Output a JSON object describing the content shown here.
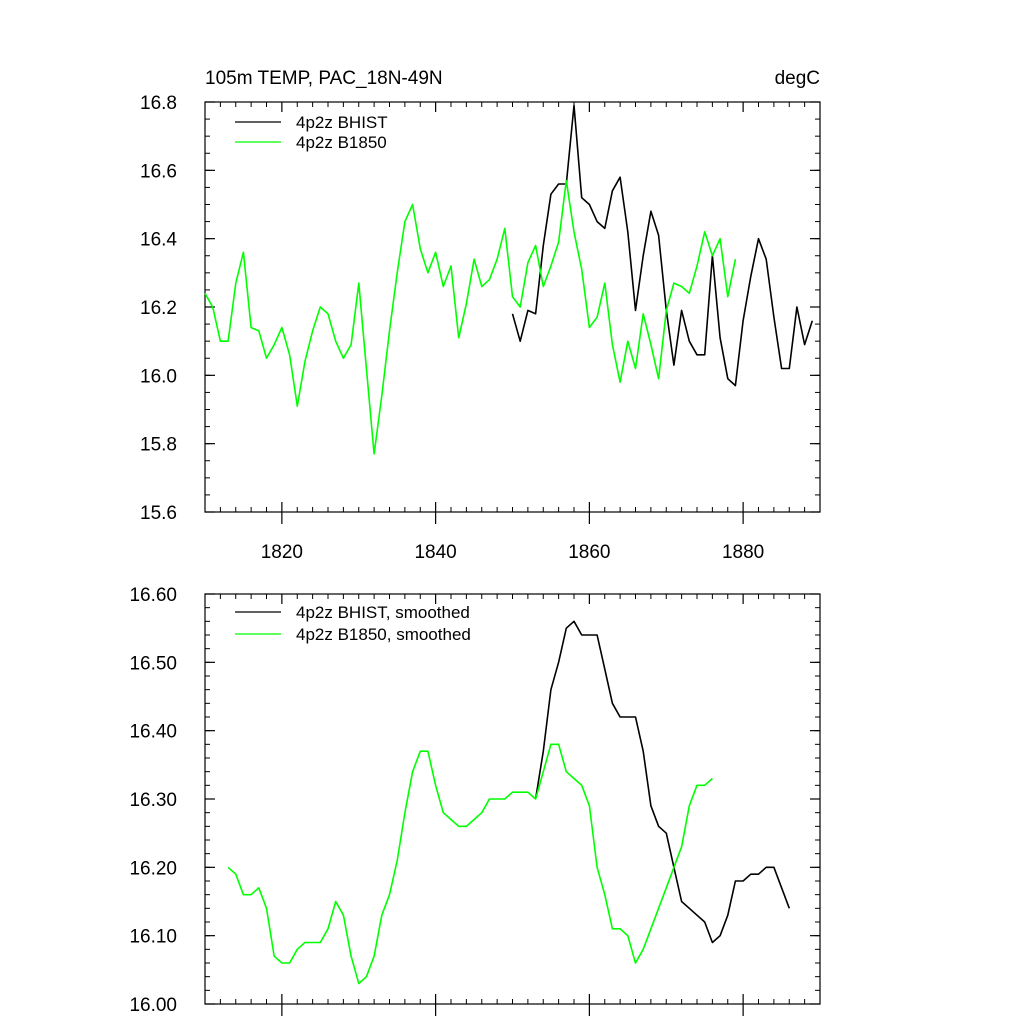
{
  "chart_data": [
    {
      "type": "line",
      "title_left": "105m TEMP, PAC_18N-49N",
      "title_right": "degC",
      "xlim": [
        1810,
        1890
      ],
      "ylim": [
        15.6,
        16.8
      ],
      "xticks": [
        {
          "value": 1820,
          "label": "1820"
        },
        {
          "value": 1840,
          "label": "1840"
        },
        {
          "value": 1860,
          "label": "1860"
        },
        {
          "value": 1880,
          "label": "1880"
        }
      ],
      "yticks": [
        {
          "value": 15.6,
          "label": "15.6"
        },
        {
          "value": 15.8,
          "label": "15.8"
        },
        {
          "value": 16.0,
          "label": "16.0"
        },
        {
          "value": 16.2,
          "label": "16.2"
        },
        {
          "value": 16.4,
          "label": "16.4"
        },
        {
          "value": 16.6,
          "label": "16.6"
        },
        {
          "value": 16.8,
          "label": "16.8"
        }
      ],
      "legend_position": "top-left",
      "series": [
        {
          "name": "4p2z BHIST",
          "color": "#000000",
          "x": [
            1850,
            1851,
            1852,
            1853,
            1854,
            1855,
            1856,
            1857,
            1858,
            1859,
            1860,
            1861,
            1862,
            1863,
            1864,
            1865,
            1866,
            1867,
            1868,
            1869,
            1870,
            1871,
            1872,
            1873,
            1874,
            1875,
            1876,
            1877,
            1878,
            1879,
            1880,
            1881,
            1882,
            1883,
            1884,
            1885,
            1886,
            1887,
            1888,
            1889
          ],
          "y": [
            16.18,
            16.1,
            16.19,
            16.18,
            16.38,
            16.53,
            16.56,
            16.56,
            16.79,
            16.52,
            16.5,
            16.45,
            16.43,
            16.54,
            16.58,
            16.42,
            16.19,
            16.35,
            16.48,
            16.41,
            16.19,
            16.03,
            16.19,
            16.1,
            16.06,
            16.06,
            16.35,
            16.11,
            15.99,
            15.97,
            16.16,
            16.29,
            16.4,
            16.34,
            16.17,
            16.02,
            16.02,
            16.2,
            16.09,
            16.16
          ]
        },
        {
          "name": "4p2z B1850",
          "color": "#00ff00",
          "x": [
            1810,
            1811,
            1812,
            1813,
            1814,
            1815,
            1816,
            1817,
            1818,
            1819,
            1820,
            1821,
            1822,
            1823,
            1824,
            1825,
            1826,
            1827,
            1828,
            1829,
            1830,
            1831,
            1832,
            1833,
            1834,
            1835,
            1836,
            1837,
            1838,
            1839,
            1840,
            1841,
            1842,
            1843,
            1844,
            1845,
            1846,
            1847,
            1848,
            1849,
            1850,
            1851,
            1852,
            1853,
            1854,
            1855,
            1856,
            1857,
            1858,
            1859,
            1860,
            1861,
            1862,
            1863,
            1864,
            1865,
            1866,
            1867,
            1868,
            1869,
            1870,
            1871,
            1872,
            1873,
            1874,
            1875,
            1876,
            1877,
            1878,
            1879
          ],
          "y": [
            16.24,
            16.2,
            16.1,
            16.1,
            16.27,
            16.36,
            16.14,
            16.13,
            16.05,
            16.09,
            16.14,
            16.06,
            15.91,
            16.04,
            16.13,
            16.2,
            16.18,
            16.1,
            16.05,
            16.09,
            16.27,
            16.02,
            15.77,
            15.94,
            16.13,
            16.3,
            16.45,
            16.5,
            16.37,
            16.3,
            16.36,
            16.26,
            16.32,
            16.11,
            16.21,
            16.34,
            16.26,
            16.28,
            16.34,
            16.43,
            16.23,
            16.2,
            16.33,
            16.38,
            16.26,
            16.32,
            16.39,
            16.57,
            16.42,
            16.31,
            16.14,
            16.17,
            16.27,
            16.09,
            15.98,
            16.1,
            16.02,
            16.18,
            16.09,
            15.99,
            16.19,
            16.27,
            16.26,
            16.24,
            16.32,
            16.42,
            16.35,
            16.4,
            16.23,
            16.34
          ]
        }
      ]
    },
    {
      "type": "line",
      "xlim": [
        1810,
        1890
      ],
      "ylim": [
        16.0,
        16.6
      ],
      "xticks": [
        {
          "value": 1820,
          "label": ""
        },
        {
          "value": 1840,
          "label": ""
        },
        {
          "value": 1860,
          "label": ""
        },
        {
          "value": 1880,
          "label": ""
        }
      ],
      "yticks": [
        {
          "value": 16.0,
          "label": "16.00"
        },
        {
          "value": 16.1,
          "label": "16.10"
        },
        {
          "value": 16.2,
          "label": "16.20"
        },
        {
          "value": 16.3,
          "label": "16.30"
        },
        {
          "value": 16.4,
          "label": "16.40"
        },
        {
          "value": 16.5,
          "label": "16.50"
        },
        {
          "value": 16.6,
          "label": "16.60"
        }
      ],
      "legend_position": "top-left",
      "series": [
        {
          "name": "4p2z BHIST, smoothed",
          "color": "#000000",
          "x": [
            1853,
            1854,
            1855,
            1856,
            1857,
            1858,
            1859,
            1860,
            1861,
            1862,
            1863,
            1864,
            1865,
            1866,
            1867,
            1868,
            1869,
            1870,
            1871,
            1872,
            1873,
            1874,
            1875,
            1876,
            1877,
            1878,
            1879,
            1880,
            1881,
            1882,
            1883,
            1884,
            1885,
            1886
          ],
          "y": [
            16.3,
            16.37,
            16.46,
            16.5,
            16.55,
            16.56,
            16.54,
            16.54,
            16.54,
            16.49,
            16.44,
            16.42,
            16.42,
            16.42,
            16.37,
            16.29,
            16.26,
            16.25,
            16.2,
            16.15,
            16.14,
            16.13,
            16.12,
            16.09,
            16.1,
            16.13,
            16.18,
            16.18,
            16.19,
            16.19,
            16.2,
            16.2,
            16.17,
            16.14
          ]
        },
        {
          "name": "4p2z B1850, smoothed",
          "color": "#00ff00",
          "x": [
            1813,
            1814,
            1815,
            1816,
            1817,
            1818,
            1819,
            1820,
            1821,
            1822,
            1823,
            1824,
            1825,
            1826,
            1827,
            1828,
            1829,
            1830,
            1831,
            1832,
            1833,
            1834,
            1835,
            1836,
            1837,
            1838,
            1839,
            1840,
            1841,
            1842,
            1843,
            1844,
            1845,
            1846,
            1847,
            1848,
            1849,
            1850,
            1851,
            1852,
            1853,
            1854,
            1855,
            1856,
            1857,
            1858,
            1859,
            1860,
            1861,
            1862,
            1863,
            1864,
            1865,
            1866,
            1867,
            1868,
            1869,
            1870,
            1871,
            1872,
            1873,
            1874,
            1875,
            1876
          ],
          "y": [
            16.2,
            16.19,
            16.16,
            16.16,
            16.17,
            16.14,
            16.07,
            16.06,
            16.06,
            16.08,
            16.09,
            16.09,
            16.09,
            16.11,
            16.15,
            16.13,
            16.07,
            16.03,
            16.04,
            16.07,
            16.13,
            16.16,
            16.21,
            16.28,
            16.34,
            16.37,
            16.37,
            16.32,
            16.28,
            16.27,
            16.26,
            16.26,
            16.27,
            16.28,
            16.3,
            16.3,
            16.3,
            16.31,
            16.31,
            16.31,
            16.3,
            16.34,
            16.38,
            16.38,
            16.34,
            16.33,
            16.32,
            16.29,
            16.2,
            16.16,
            16.11,
            16.11,
            16.1,
            16.06,
            16.08,
            16.11,
            16.14,
            16.17,
            16.2,
            16.23,
            16.29,
            16.32,
            16.32,
            16.33
          ]
        }
      ]
    }
  ]
}
